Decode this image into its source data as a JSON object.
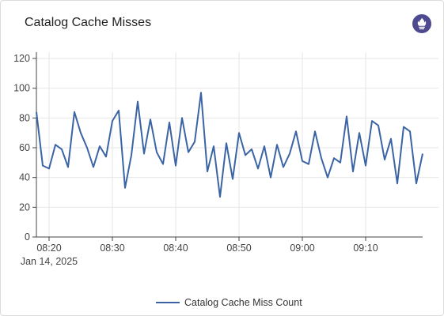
{
  "header": {
    "title": "Catalog Cache Misses",
    "logo": "prometheus-icon"
  },
  "colors": {
    "series": "#3b64a5",
    "grid": "#e6e6e6",
    "axis": "#444444",
    "logo_bg": "#4d4a8f"
  },
  "chart_data": {
    "type": "line",
    "title": "Catalog Cache Misses",
    "xlabel": "",
    "ylabel": "",
    "ylim": [
      0,
      120
    ],
    "xlim": [
      "08:18",
      "09:19"
    ],
    "y_ticks": [
      0,
      20,
      40,
      60,
      80,
      100,
      120
    ],
    "x_ticks": [
      {
        "time": "08:20",
        "label": "08:20",
        "sublabel": "Jan 14, 2025"
      },
      {
        "time": "08:30",
        "label": "08:30"
      },
      {
        "time": "08:40",
        "label": "08:40"
      },
      {
        "time": "08:50",
        "label": "08:50"
      },
      {
        "time": "09:00",
        "label": "09:00"
      },
      {
        "time": "09:10",
        "label": "09:10"
      }
    ],
    "grid": true,
    "legend_position": "bottom",
    "series": [
      {
        "name": "Catalog Cache Miss Count",
        "x": [
          "08:18",
          "08:19",
          "08:20",
          "08:21",
          "08:22",
          "08:23",
          "08:24",
          "08:25",
          "08:26",
          "08:27",
          "08:28",
          "08:29",
          "08:30",
          "08:31",
          "08:32",
          "08:33",
          "08:34",
          "08:35",
          "08:36",
          "08:37",
          "08:38",
          "08:39",
          "08:40",
          "08:41",
          "08:42",
          "08:43",
          "08:44",
          "08:45",
          "08:46",
          "08:47",
          "08:48",
          "08:49",
          "08:50",
          "08:51",
          "08:52",
          "08:53",
          "08:54",
          "08:55",
          "08:56",
          "08:57",
          "08:58",
          "08:59",
          "09:00",
          "09:01",
          "09:02",
          "09:03",
          "09:04",
          "09:05",
          "09:06",
          "09:07",
          "09:08",
          "09:09",
          "09:10",
          "09:11",
          "09:12",
          "09:13",
          "09:14",
          "09:15",
          "09:16",
          "09:17",
          "09:18",
          "09:19"
        ],
        "values": [
          84,
          48,
          46,
          62,
          59,
          47,
          84,
          70,
          60,
          47,
          61,
          54,
          78,
          85,
          33,
          55,
          91,
          56,
          79,
          57,
          49,
          77,
          48,
          80,
          57,
          64,
          97,
          44,
          61,
          27,
          63,
          39,
          70,
          55,
          59,
          46,
          61,
          40,
          62,
          47,
          56,
          71,
          51,
          49,
          71,
          53,
          40,
          53,
          50,
          81,
          44,
          70,
          48,
          78,
          75,
          52,
          66,
          36,
          74,
          71,
          36,
          56
        ]
      }
    ]
  },
  "legend": {
    "label": "Catalog Cache Miss Count"
  }
}
